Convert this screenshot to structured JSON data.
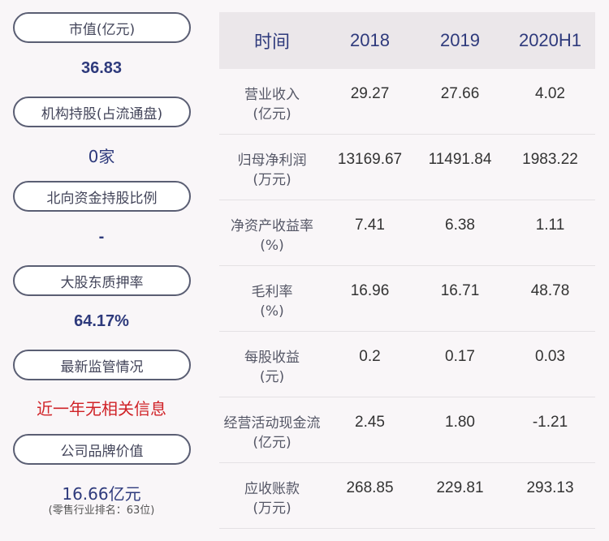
{
  "left_panel": [
    {
      "label": "市值(亿元)",
      "value": "36.83"
    },
    {
      "label": "机构持股(占流通盘)",
      "value": "0家"
    },
    {
      "label": "北向资金持股比例",
      "value": "-"
    },
    {
      "label": "大股东质押率",
      "value": "64.17%"
    },
    {
      "label": "最新监管情况",
      "value": "近一年无相关信息"
    },
    {
      "label": "公司品牌价值",
      "value": "16.66亿元",
      "note": "(零售行业排名：63位)"
    }
  ],
  "table": {
    "headers": [
      "时间",
      "2018",
      "2019",
      "2020H1"
    ],
    "rows": [
      {
        "name": "营业收入",
        "unit": "(亿元)",
        "values": [
          "29.27",
          "27.66",
          "4.02"
        ]
      },
      {
        "name": "归母净利润",
        "unit": "(万元)",
        "values": [
          "13169.67",
          "11491.84",
          "1983.22"
        ]
      },
      {
        "name": "净资产收益率",
        "unit": "(%)",
        "values": [
          "7.41",
          "6.38",
          "1.11"
        ]
      },
      {
        "name": "毛利率",
        "unit": "(%)",
        "values": [
          "16.96",
          "16.71",
          "48.78"
        ]
      },
      {
        "name": "每股收益",
        "unit": "(元)",
        "values": [
          "0.2",
          "0.17",
          "0.03"
        ]
      },
      {
        "name": "经营活动现金流",
        "unit": "(亿元)",
        "values": [
          "2.45",
          "1.80",
          "-1.21"
        ]
      },
      {
        "name": "应收账款",
        "unit": "(万元)",
        "values": [
          "268.85",
          "229.81",
          "293.13"
        ]
      }
    ]
  },
  "colors": {
    "value_blue": "#2e3a7c",
    "alert_red": "#d02227",
    "header_bg": "#ebe7ea"
  }
}
